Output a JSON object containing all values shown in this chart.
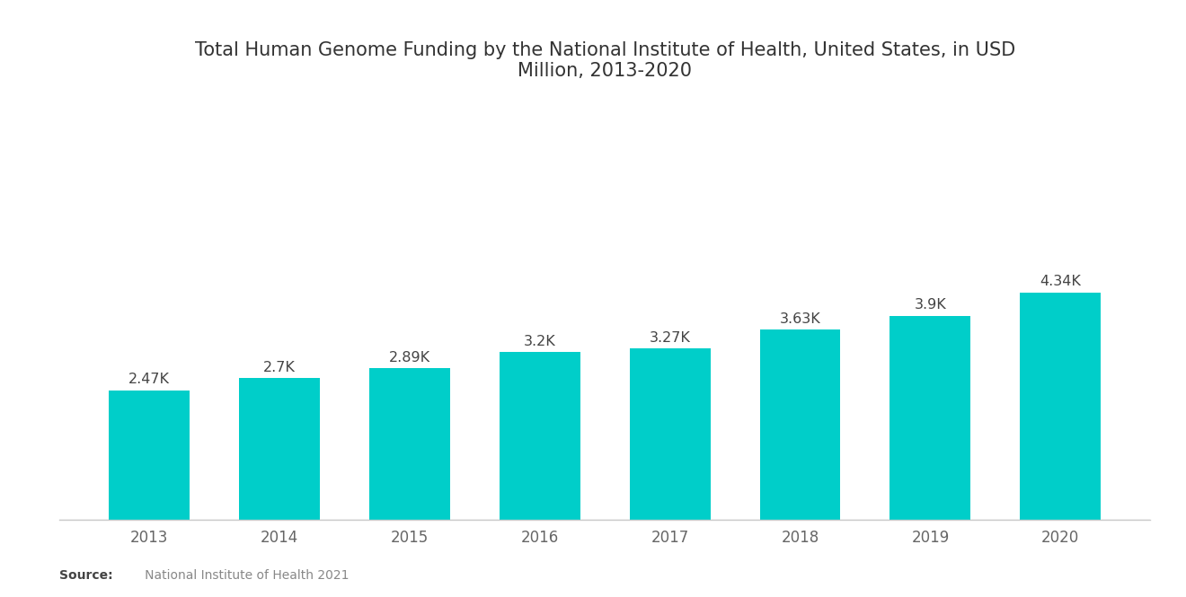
{
  "title": "Total Human Genome Funding by the National Institute of Health, United States, in USD\nMillion, 2013-2020",
  "years": [
    "2013",
    "2014",
    "2015",
    "2016",
    "2017",
    "2018",
    "2019",
    "2020"
  ],
  "values": [
    2470,
    2700,
    2890,
    3200,
    3270,
    3630,
    3900,
    4340
  ],
  "labels": [
    "2.47K",
    "2.7K",
    "2.89K",
    "3.2K",
    "3.27K",
    "3.63K",
    "3.9K",
    "4.34K"
  ],
  "bar_color": "#00CEC9",
  "background_color": "#ffffff",
  "title_fontsize": 15,
  "label_fontsize": 11.5,
  "tick_fontsize": 12,
  "source_bold": "Source:",
  "source_normal": "   National Institute of Health 2021",
  "ylim": [
    0,
    8000
  ]
}
